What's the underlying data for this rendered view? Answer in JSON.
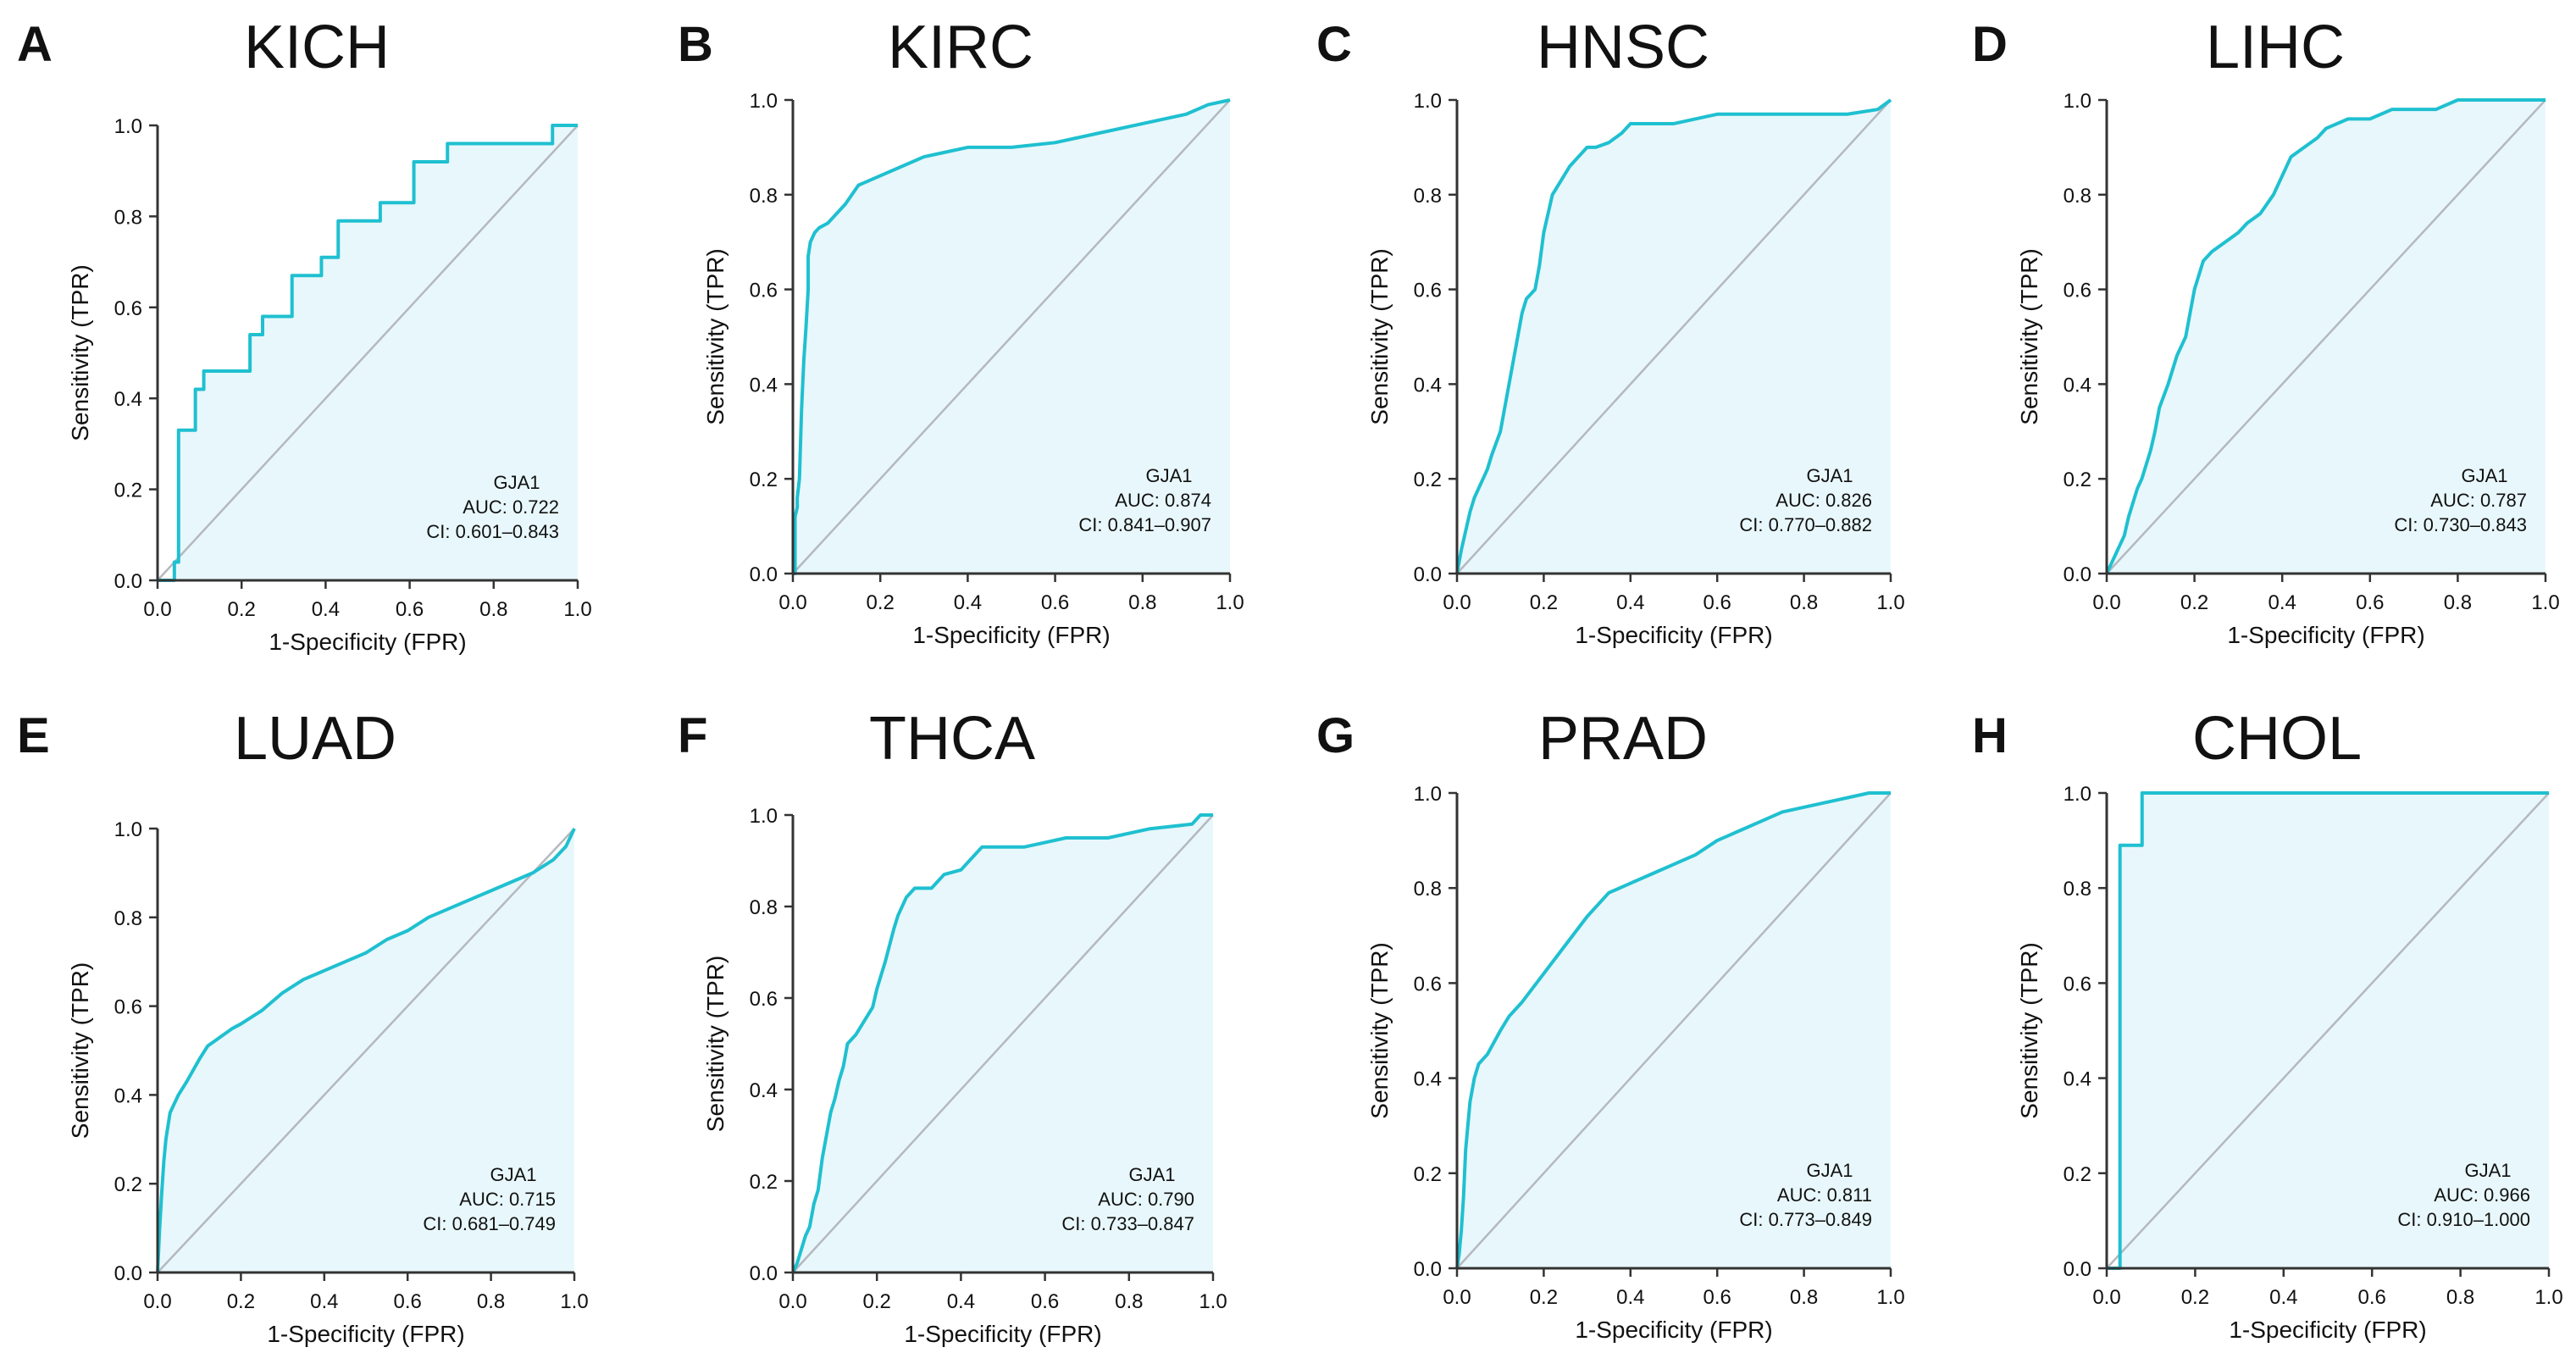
{
  "figure": {
    "xlabel": "1-Specificity (FPR)",
    "ylabel": "Sensitivity (TPR)",
    "gene": "GJA1",
    "ticks": [
      "0.0",
      "0.2",
      "0.4",
      "0.6",
      "0.8",
      "1.0"
    ],
    "colors": {
      "curve": "#1fc0d0",
      "fill": "#e8f7fb",
      "diagonal": "#b4b9bf",
      "axis": "#333333",
      "text": "#111111"
    }
  },
  "chart_data": [
    {
      "type": "line",
      "panel": "A",
      "title": "KICH",
      "auc_text": "AUC: 0.722",
      "ci_text": "CI: 0.601–0.843",
      "xlim": [
        0,
        1
      ],
      "ylim": [
        0,
        1
      ],
      "x": [
        0,
        0.04,
        0.04,
        0.05,
        0.05,
        0.09,
        0.09,
        0.11,
        0.11,
        0.22,
        0.22,
        0.25,
        0.25,
        0.32,
        0.32,
        0.39,
        0.39,
        0.43,
        0.43,
        0.53,
        0.53,
        0.61,
        0.61,
        0.69,
        0.69,
        0.94,
        0.94,
        1.0
      ],
      "y": [
        0,
        0,
        0.04,
        0.04,
        0.33,
        0.33,
        0.42,
        0.42,
        0.46,
        0.46,
        0.54,
        0.54,
        0.58,
        0.58,
        0.67,
        0.67,
        0.71,
        0.71,
        0.79,
        0.79,
        0.83,
        0.83,
        0.92,
        0.92,
        0.96,
        0.96,
        1.0,
        1.0
      ]
    },
    {
      "type": "line",
      "panel": "B",
      "title": "KIRC",
      "auc_text": "AUC: 0.874",
      "ci_text": "CI: 0.841–0.907",
      "xlim": [
        0,
        1
      ],
      "ylim": [
        0,
        1
      ],
      "x": [
        0,
        0.005,
        0.005,
        0.01,
        0.01,
        0.015,
        0.02,
        0.025,
        0.03,
        0.035,
        0.035,
        0.04,
        0.05,
        0.06,
        0.08,
        0.1,
        0.12,
        0.15,
        0.2,
        0.25,
        0.3,
        0.35,
        0.4,
        0.5,
        0.6,
        0.7,
        0.8,
        0.9,
        0.95,
        1.0
      ],
      "y": [
        0,
        0,
        0.12,
        0.14,
        0.16,
        0.2,
        0.35,
        0.45,
        0.52,
        0.6,
        0.67,
        0.7,
        0.72,
        0.73,
        0.74,
        0.76,
        0.78,
        0.82,
        0.84,
        0.86,
        0.88,
        0.89,
        0.9,
        0.9,
        0.91,
        0.93,
        0.95,
        0.97,
        0.99,
        1.0
      ]
    },
    {
      "type": "line",
      "panel": "C",
      "title": "HNSC",
      "auc_text": "AUC: 0.826",
      "ci_text": "CI: 0.770–0.882",
      "xlim": [
        0,
        1
      ],
      "ylim": [
        0,
        1
      ],
      "x": [
        0,
        0.01,
        0.02,
        0.03,
        0.04,
        0.05,
        0.06,
        0.07,
        0.08,
        0.1,
        0.11,
        0.12,
        0.13,
        0.14,
        0.15,
        0.16,
        0.18,
        0.19,
        0.2,
        0.21,
        0.22,
        0.24,
        0.26,
        0.28,
        0.3,
        0.32,
        0.35,
        0.38,
        0.4,
        0.5,
        0.6,
        0.65,
        0.7,
        0.8,
        0.9,
        0.97,
        1.0
      ],
      "y": [
        0,
        0.05,
        0.09,
        0.13,
        0.16,
        0.18,
        0.2,
        0.22,
        0.25,
        0.3,
        0.35,
        0.4,
        0.45,
        0.5,
        0.55,
        0.58,
        0.6,
        0.65,
        0.72,
        0.76,
        0.8,
        0.83,
        0.86,
        0.88,
        0.9,
        0.9,
        0.91,
        0.93,
        0.95,
        0.95,
        0.97,
        0.97,
        0.97,
        0.97,
        0.97,
        0.98,
        1.0
      ]
    },
    {
      "type": "line",
      "panel": "D",
      "title": "LIHC",
      "auc_text": "AUC: 0.787",
      "ci_text": "CI: 0.730–0.843",
      "xlim": [
        0,
        1
      ],
      "ylim": [
        0,
        1
      ],
      "x": [
        0,
        0.01,
        0.02,
        0.03,
        0.04,
        0.05,
        0.06,
        0.07,
        0.08,
        0.09,
        0.1,
        0.11,
        0.12,
        0.14,
        0.16,
        0.18,
        0.19,
        0.2,
        0.22,
        0.24,
        0.27,
        0.3,
        0.32,
        0.35,
        0.38,
        0.4,
        0.42,
        0.45,
        0.48,
        0.5,
        0.55,
        0.6,
        0.65,
        0.75,
        0.8,
        0.9,
        1.0
      ],
      "y": [
        0,
        0.02,
        0.04,
        0.06,
        0.08,
        0.12,
        0.15,
        0.18,
        0.2,
        0.23,
        0.26,
        0.3,
        0.35,
        0.4,
        0.46,
        0.5,
        0.55,
        0.6,
        0.66,
        0.68,
        0.7,
        0.72,
        0.74,
        0.76,
        0.8,
        0.84,
        0.88,
        0.9,
        0.92,
        0.94,
        0.96,
        0.96,
        0.98,
        0.98,
        1.0,
        1.0,
        1.0
      ]
    },
    {
      "type": "line",
      "panel": "E",
      "title": "LUAD",
      "auc_text": "AUC: 0.715",
      "ci_text": "CI: 0.681–0.749",
      "xlim": [
        0,
        1
      ],
      "ylim": [
        0,
        1
      ],
      "x": [
        0,
        0.005,
        0.01,
        0.015,
        0.02,
        0.03,
        0.05,
        0.07,
        0.1,
        0.12,
        0.15,
        0.18,
        0.2,
        0.25,
        0.3,
        0.35,
        0.4,
        0.45,
        0.5,
        0.55,
        0.6,
        0.65,
        0.7,
        0.75,
        0.8,
        0.85,
        0.9,
        0.95,
        0.98,
        1.0
      ],
      "y": [
        0,
        0.1,
        0.18,
        0.25,
        0.3,
        0.36,
        0.4,
        0.43,
        0.48,
        0.51,
        0.53,
        0.55,
        0.56,
        0.59,
        0.63,
        0.66,
        0.68,
        0.7,
        0.72,
        0.75,
        0.77,
        0.8,
        0.82,
        0.84,
        0.86,
        0.88,
        0.9,
        0.93,
        0.96,
        1.0
      ]
    },
    {
      "type": "line",
      "panel": "F",
      "title": "THCA",
      "auc_text": "AUC: 0.790",
      "ci_text": "CI: 0.733–0.847",
      "xlim": [
        0,
        1
      ],
      "ylim": [
        0,
        1
      ],
      "x": [
        0,
        0.01,
        0.02,
        0.03,
        0.04,
        0.05,
        0.06,
        0.07,
        0.08,
        0.09,
        0.1,
        0.11,
        0.12,
        0.13,
        0.15,
        0.17,
        0.19,
        0.2,
        0.22,
        0.24,
        0.25,
        0.27,
        0.29,
        0.33,
        0.36,
        0.4,
        0.45,
        0.55,
        0.6,
        0.65,
        0.75,
        0.85,
        0.95,
        0.97,
        1.0
      ],
      "y": [
        0,
        0.02,
        0.05,
        0.08,
        0.1,
        0.15,
        0.18,
        0.25,
        0.3,
        0.35,
        0.38,
        0.42,
        0.45,
        0.5,
        0.52,
        0.55,
        0.58,
        0.62,
        0.68,
        0.75,
        0.78,
        0.82,
        0.84,
        0.84,
        0.87,
        0.88,
        0.93,
        0.93,
        0.94,
        0.95,
        0.95,
        0.97,
        0.98,
        1.0,
        1.0
      ]
    },
    {
      "type": "line",
      "panel": "G",
      "title": "PRAD",
      "auc_text": "AUC: 0.811",
      "ci_text": "CI: 0.773–0.849",
      "xlim": [
        0,
        1
      ],
      "ylim": [
        0,
        1
      ],
      "x": [
        0,
        0.005,
        0.01,
        0.015,
        0.02,
        0.025,
        0.03,
        0.04,
        0.05,
        0.07,
        0.1,
        0.12,
        0.15,
        0.2,
        0.25,
        0.3,
        0.35,
        0.4,
        0.45,
        0.5,
        0.55,
        0.6,
        0.65,
        0.7,
        0.75,
        0.8,
        0.85,
        0.9,
        0.95,
        1.0
      ],
      "y": [
        0,
        0.03,
        0.08,
        0.15,
        0.25,
        0.3,
        0.35,
        0.4,
        0.43,
        0.45,
        0.5,
        0.53,
        0.56,
        0.62,
        0.68,
        0.74,
        0.79,
        0.81,
        0.83,
        0.85,
        0.87,
        0.9,
        0.92,
        0.94,
        0.96,
        0.97,
        0.98,
        0.99,
        1.0,
        1.0
      ]
    },
    {
      "type": "line",
      "panel": "H",
      "title": "CHOL",
      "auc_text": "AUC: 0.966",
      "ci_text": "CI: 0.910–1.000",
      "xlim": [
        0,
        1
      ],
      "ylim": [
        0,
        1
      ],
      "x": [
        0,
        0.03,
        0.03,
        0.08,
        0.08,
        1.0
      ],
      "y": [
        0,
        0,
        0.89,
        0.89,
        1.0,
        1.0
      ]
    }
  ]
}
